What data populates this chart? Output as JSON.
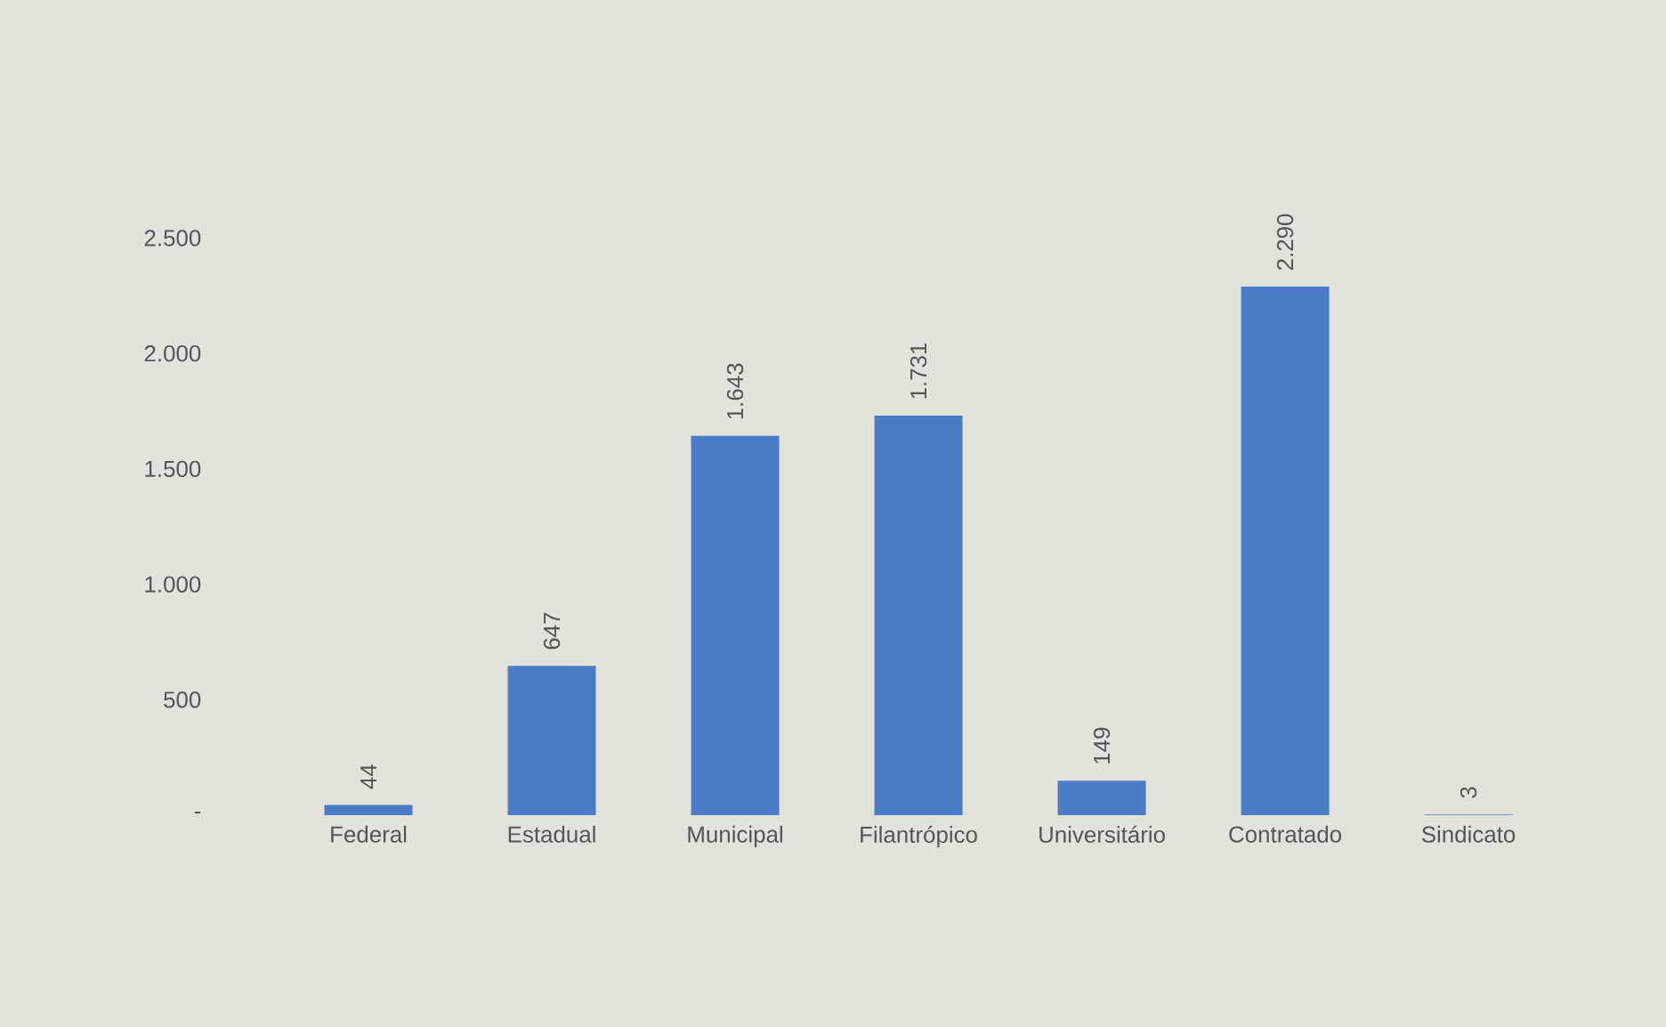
{
  "chart_data": {
    "type": "bar",
    "categories": [
      "Federal",
      "Estadual",
      "Municipal",
      "Filantrópico",
      "Universitário",
      "Contratado",
      "Sindicato"
    ],
    "values": [
      44,
      647,
      1643,
      1731,
      149,
      2290,
      3
    ],
    "value_labels": [
      "44",
      "647",
      "1.643",
      "1.731",
      "149",
      "2.290",
      "3"
    ],
    "color": "#4a7cc8",
    "ylim": [
      0,
      2500
    ],
    "yticks": [
      {
        "value": 0,
        "label": "-"
      },
      {
        "value": 500,
        "label": "500"
      },
      {
        "value": 1000,
        "label": "1.000"
      },
      {
        "value": 1500,
        "label": "1.500"
      },
      {
        "value": 2000,
        "label": "2.000"
      },
      {
        "value": 2500,
        "label": "2.500"
      }
    ],
    "grid": false
  }
}
